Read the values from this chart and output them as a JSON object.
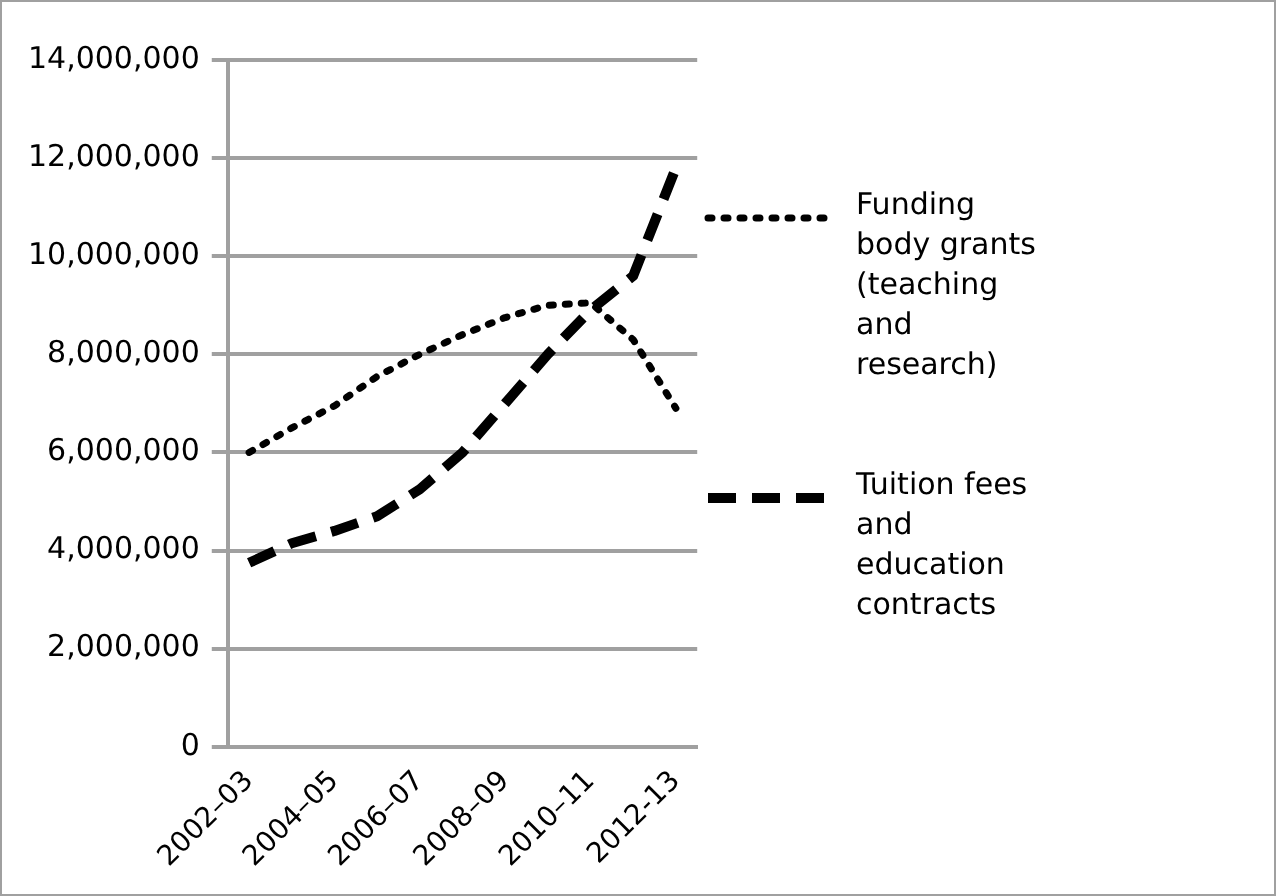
{
  "chart_data": {
    "type": "line",
    "categories": [
      "2002–03",
      null,
      "2004–05",
      null,
      "2006–07",
      null,
      "2008–09",
      null,
      "2010–11",
      null,
      "2012-13"
    ],
    "series": [
      {
        "name": "Funding body grants (teaching and research)",
        "color": "#000000",
        "line_style": "dotted",
        "values": [
          6000000,
          6500000,
          6950000,
          7550000,
          8000000,
          8400000,
          8750000,
          9000000,
          9050000,
          8300000,
          6900000
        ]
      },
      {
        "name": "Tuition fees and education contracts",
        "color": "#000000",
        "line_style": "dashed",
        "values": [
          3750000,
          4150000,
          4400000,
          4700000,
          5250000,
          6000000,
          7000000,
          8000000,
          8900000,
          9600000,
          11800000
        ]
      }
    ],
    "ylim": [
      0,
      14000000
    ],
    "yticks": [
      0,
      {
        "value": 2000000,
        "label": "2,000,000"
      },
      {
        "value": 4000000,
        "label": "4,000,000"
      },
      {
        "value": 6000000,
        "label": "6,000,000"
      },
      {
        "value": 8000000,
        "label": "8,000,000"
      },
      {
        "value": 10000000,
        "label": "10,000,000"
      },
      {
        "value": 12000000,
        "label": "12,000,000"
      },
      {
        "value": 14000000,
        "label": "14,000,000"
      }
    ],
    "grid": "y",
    "legend": "right",
    "marker": "none"
  }
}
